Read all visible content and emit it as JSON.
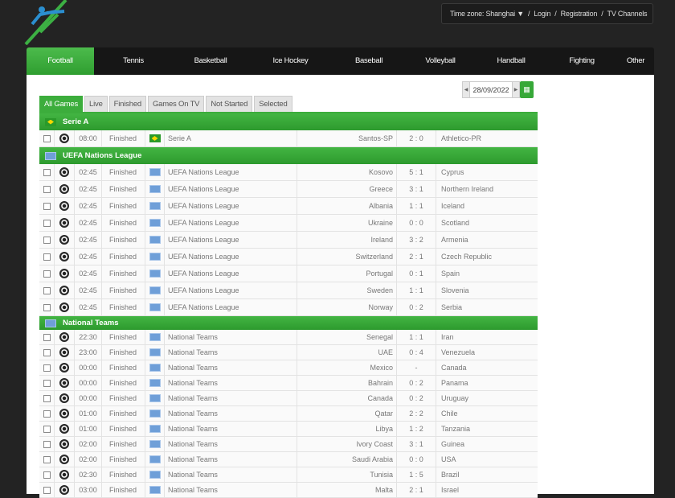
{
  "header": {
    "timezone": "Time zone: Shanghai ▼",
    "links": [
      "Login",
      "Registration",
      "TV Channels"
    ]
  },
  "nav": [
    "Football",
    "Tennis",
    "Basketball",
    "Ice Hockey",
    "Baseball",
    "Volleyball",
    "Handball",
    "Fighting",
    "Other"
  ],
  "date": "28/09/2022",
  "tabs": [
    "All Games",
    "Live",
    "Finished",
    "Games On TV",
    "Not Started",
    "Selected"
  ],
  "groups": [
    {
      "name": "Serie A",
      "flag": "brazil",
      "matches": [
        [
          "08:00",
          "Finished",
          "Serie A",
          "Santos-SP",
          "2 : 0",
          "Athletico-PR"
        ]
      ]
    },
    {
      "name": "UEFA Nations League",
      "flag": "world",
      "matches": [
        [
          "02:45",
          "Finished",
          "UEFA Nations League",
          "Kosovo",
          "5 : 1",
          "Cyprus"
        ],
        [
          "02:45",
          "Finished",
          "UEFA Nations League",
          "Greece",
          "3 : 1",
          "Northern Ireland"
        ],
        [
          "02:45",
          "Finished",
          "UEFA Nations League",
          "Albania",
          "1 : 1",
          "Iceland"
        ],
        [
          "02:45",
          "Finished",
          "UEFA Nations League",
          "Ukraine",
          "0 : 0",
          "Scotland"
        ],
        [
          "02:45",
          "Finished",
          "UEFA Nations League",
          "Ireland",
          "3 : 2",
          "Armenia"
        ],
        [
          "02:45",
          "Finished",
          "UEFA Nations League",
          "Switzerland",
          "2 : 1",
          "Czech Republic"
        ],
        [
          "02:45",
          "Finished",
          "UEFA Nations League",
          "Portugal",
          "0 : 1",
          "Spain"
        ],
        [
          "02:45",
          "Finished",
          "UEFA Nations League",
          "Sweden",
          "1 : 1",
          "Slovenia"
        ],
        [
          "02:45",
          "Finished",
          "UEFA Nations League",
          "Norway",
          "0 : 2",
          "Serbia"
        ]
      ]
    },
    {
      "name": "National Teams",
      "flag": "world",
      "matches": [
        [
          "22:30",
          "Finished",
          "National Teams",
          "Senegal",
          "1 : 1",
          "Iran"
        ],
        [
          "23:00",
          "Finished",
          "National Teams",
          "UAE",
          "0 : 4",
          "Venezuela"
        ],
        [
          "00:00",
          "Finished",
          "National Teams",
          "Mexico",
          "-",
          "Canada"
        ],
        [
          "00:00",
          "Finished",
          "National Teams",
          "Bahrain",
          "0 : 2",
          "Panama"
        ],
        [
          "00:00",
          "Finished",
          "National Teams",
          "Canada",
          "0 : 2",
          "Uruguay"
        ],
        [
          "01:00",
          "Finished",
          "National Teams",
          "Qatar",
          "2 : 2",
          "Chile"
        ],
        [
          "01:00",
          "Finished",
          "National Teams",
          "Libya",
          "1 : 2",
          "Tanzania"
        ],
        [
          "02:00",
          "Finished",
          "National Teams",
          "Ivory Coast",
          "3 : 1",
          "Guinea"
        ],
        [
          "02:00",
          "Finished",
          "National Teams",
          "Saudi Arabia",
          "0 : 0",
          "USA"
        ],
        [
          "02:30",
          "Finished",
          "National Teams",
          "Tunisia",
          "1 : 5",
          "Brazil"
        ],
        [
          "03:00",
          "Finished",
          "National Teams",
          "Malta",
          "2 : 1",
          "Israel"
        ]
      ]
    }
  ]
}
